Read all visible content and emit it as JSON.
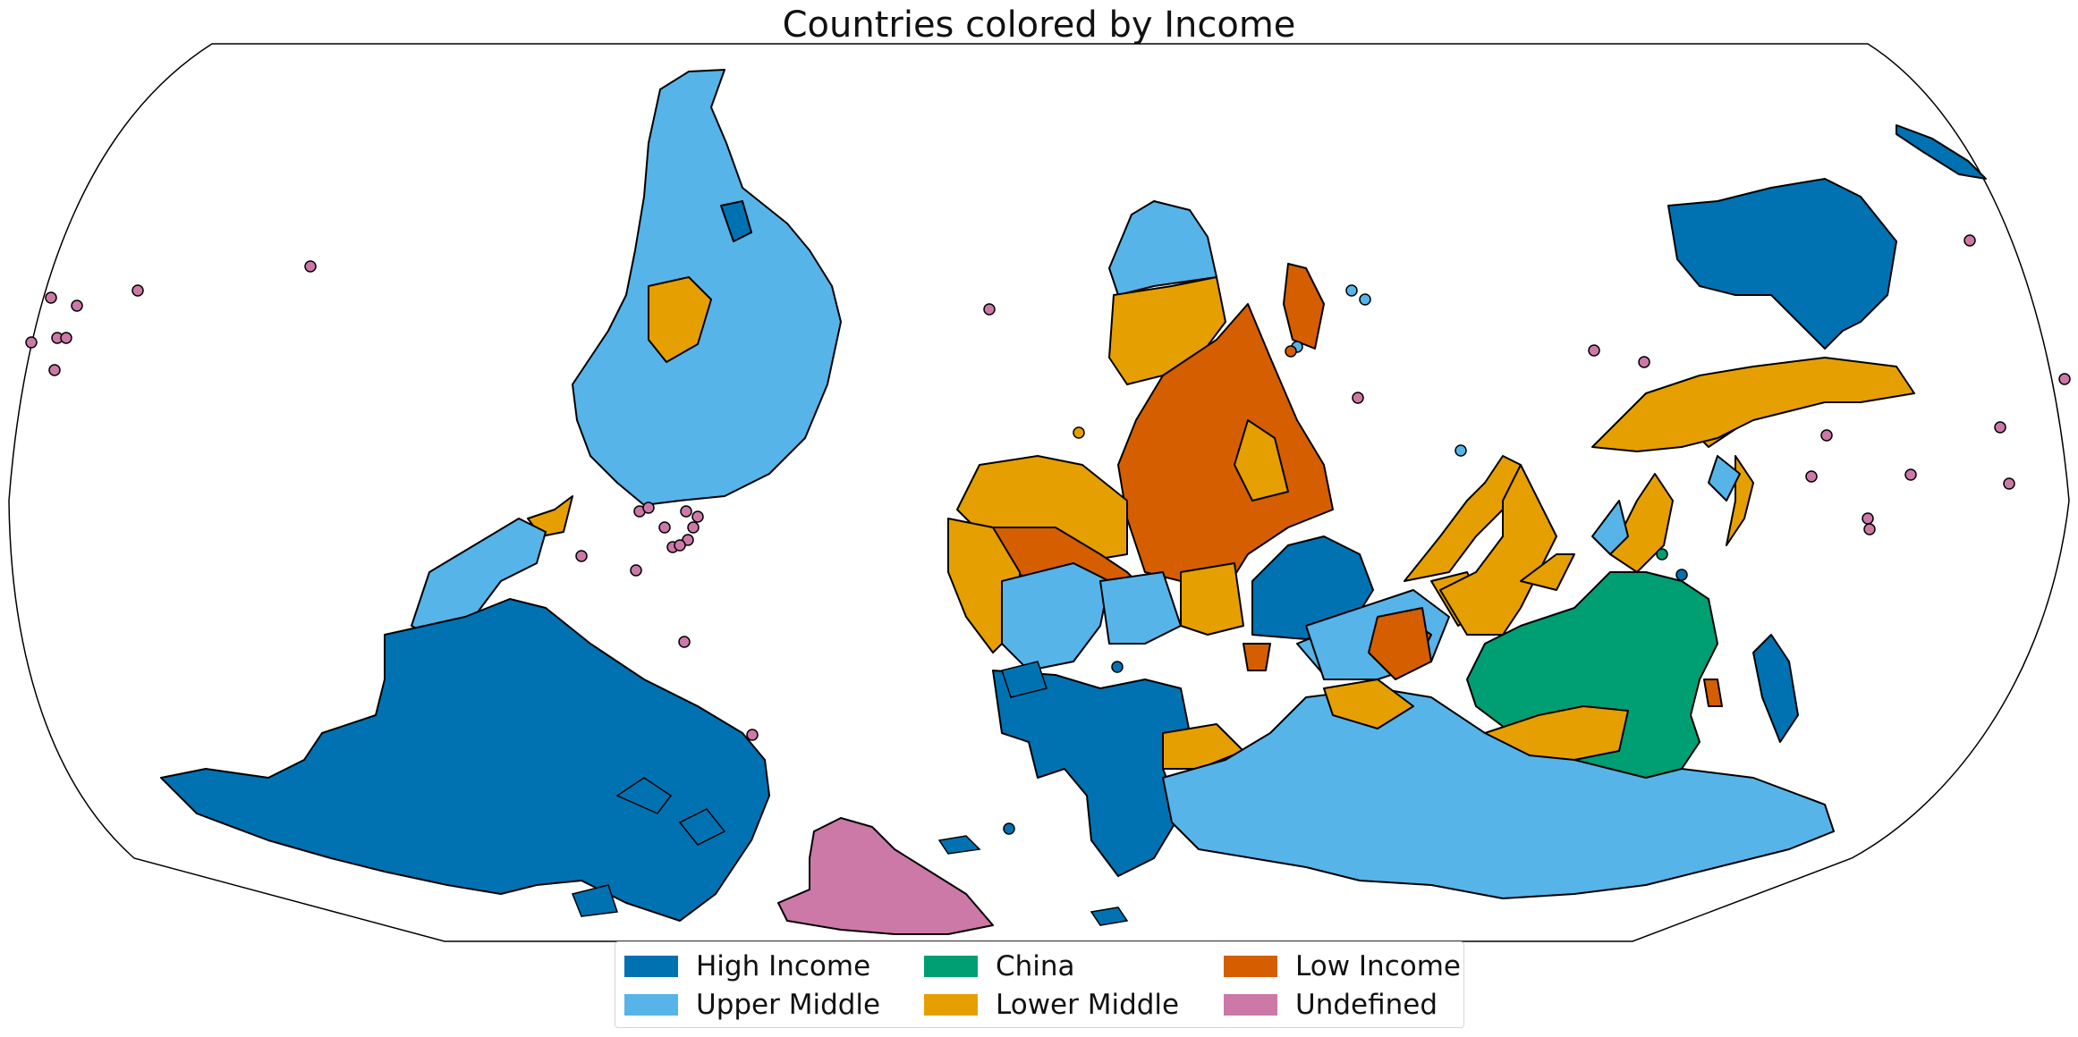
{
  "title": "Countries colored by Income",
  "colors": {
    "high": "#0072b2",
    "upper": "#56b4e9",
    "china": "#009e73",
    "lower": "#e69f00",
    "low": "#d55e00",
    "undefined": "#cc79a7"
  },
  "legend": [
    {
      "label": "High Income",
      "category": "high"
    },
    {
      "label": "China",
      "category": "china"
    },
    {
      "label": "Low Income",
      "category": "low"
    },
    {
      "label": "Upper Middle",
      "category": "upper"
    },
    {
      "label": "Lower Middle",
      "category": "lower"
    },
    {
      "label": "Undefined",
      "category": "undefined"
    }
  ]
}
